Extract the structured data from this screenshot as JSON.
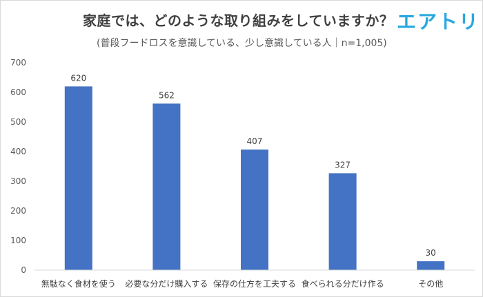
{
  "header": {
    "title": "家庭では、どのような取り組みをしていますか？",
    "logo_text": "エアトリ",
    "subtitle": "(普段フードロスを意識している、少し意識している人｜n=1,005)"
  },
  "colors": {
    "bar": "#4472c4",
    "logo": "#29a8e0",
    "grid_axis": "#d9d9d9",
    "text": "#595959"
  },
  "chart_data": {
    "type": "bar",
    "title": "家庭では、どのような取り組みをしていますか？",
    "subtitle": "(普段フードロスを意識している、少し意識している人｜n=1,005)",
    "categories": [
      "無駄なく食材を使う",
      "必要な分だけ購入する",
      "保存の仕方を工夫する",
      "食べられる分だけ作る",
      "その他"
    ],
    "values": [
      620,
      562,
      407,
      327,
      30
    ],
    "ylim": [
      0,
      700
    ],
    "yticks": [
      0,
      100,
      200,
      300,
      400,
      500,
      600,
      700
    ],
    "grid": false,
    "data_labels": true,
    "legend": "none"
  }
}
